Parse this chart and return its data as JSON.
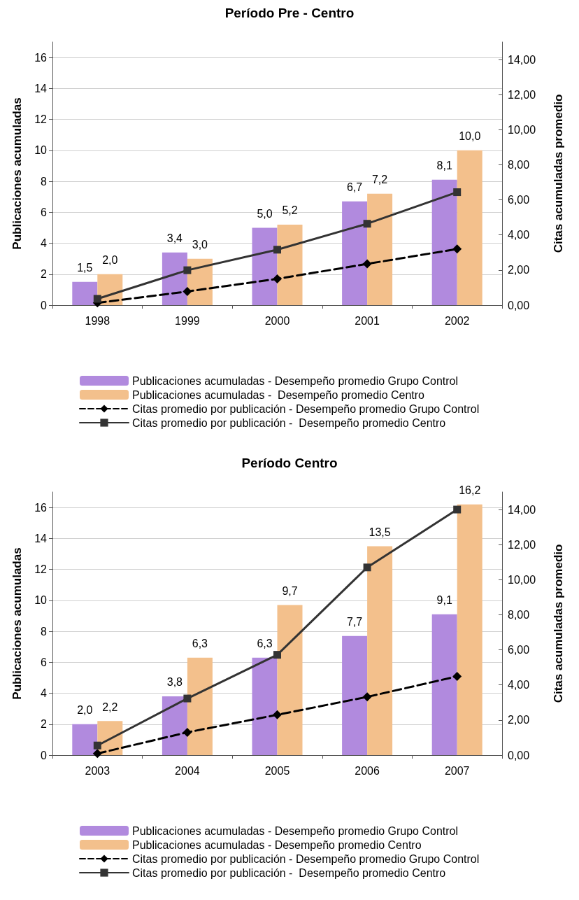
{
  "chart_data": [
    {
      "type": "bar",
      "title": "Período Pre - Centro",
      "ylabel": "Publicaciones acumuladas",
      "y2label": "Citas acumuladas promedio",
      "categories": [
        "1998",
        "1999",
        "2000",
        "2001",
        "2002"
      ],
      "series": [
        {
          "name": "Publicaciones acumuladas - Desempeño promedio Grupo Control",
          "color": "#b18ade",
          "values": [
            1.5,
            3.4,
            5.0,
            6.7,
            8.1
          ],
          "value_labels": [
            "1,5",
            "3,4",
            "5,0",
            "6,7",
            "8,1"
          ]
        },
        {
          "name": "Publicaciones acumuladas -  Desempeño promedio Centro",
          "color": "#f3c08c",
          "values": [
            2.0,
            3.0,
            5.2,
            7.2,
            10.0
          ],
          "value_labels": [
            "2,0",
            "3,0",
            "5,2",
            "7,2",
            "10,0"
          ]
        },
        {
          "name": "Citas promedio por publicación - Desempeño promedio Grupo Control",
          "type": "line",
          "axis": "y2",
          "color": "#000000",
          "marker": "diamond",
          "line_style": "dashed",
          "values": [
            0.13,
            0.78,
            1.5,
            2.35,
            3.2
          ]
        },
        {
          "name": "Citas promedio por publicación -  Desempeño promedio Centro",
          "type": "line",
          "axis": "y2",
          "color": "#333333",
          "marker": "square",
          "line_style": "solid",
          "values": [
            0.36,
            1.99,
            3.16,
            4.64,
            6.44
          ]
        }
      ],
      "ylim": [
        0,
        17
      ],
      "yticks": [
        0,
        2,
        4,
        6,
        8,
        10,
        12,
        14,
        16
      ],
      "y2lim": [
        0,
        15
      ],
      "y2ticks": [
        {
          "value": 0,
          "label": "0,00"
        },
        {
          "value": 2,
          "label": "2,00"
        },
        {
          "value": 4,
          "label": "4,00"
        },
        {
          "value": 6,
          "label": "6,00"
        },
        {
          "value": 8,
          "label": "8,00"
        },
        {
          "value": 10,
          "label": "10,00"
        },
        {
          "value": 12,
          "label": "12,00"
        },
        {
          "value": 14,
          "label": "14,00"
        }
      ],
      "grid": "y",
      "legend": "bottom"
    },
    {
      "type": "bar",
      "title": "Período Centro",
      "ylabel": "Publicaciones acumuladas",
      "y2label": "Citas acumuladas promedio",
      "categories": [
        "2003",
        "2004",
        "2005",
        "2006",
        "2007"
      ],
      "series": [
        {
          "name": "Publicaciones acumuladas - Desempeño promedio Grupo Control",
          "color": "#b18ade",
          "values": [
            2.0,
            3.8,
            6.3,
            7.7,
            9.1
          ],
          "value_labels": [
            "2,0",
            "3,8",
            "6,3",
            "7,7",
            "9,1"
          ]
        },
        {
          "name": "Publicaciones acumuladas - Desempeño promedio Centro",
          "color": "#f3c08c",
          "values": [
            2.2,
            6.3,
            9.7,
            13.5,
            16.2
          ],
          "value_labels": [
            "2,2",
            "6,3",
            "9,7",
            "13,5",
            "16,2"
          ]
        },
        {
          "name": "Citas promedio por publicación - Desempeño promedio Grupo Control",
          "type": "line",
          "axis": "y2",
          "color": "#000000",
          "marker": "diamond",
          "line_style": "dashed",
          "values": [
            0.09,
            1.3,
            2.3,
            3.32,
            4.49
          ]
        },
        {
          "name": "Citas promedio por publicación -  Desempeño promedio Centro",
          "type": "line",
          "axis": "y2",
          "color": "#333333",
          "marker": "square",
          "line_style": "solid",
          "values": [
            0.55,
            3.23,
            5.72,
            10.7,
            14.0
          ]
        }
      ],
      "ylim": [
        0,
        17
      ],
      "yticks": [
        0,
        2,
        4,
        6,
        8,
        10,
        12,
        14,
        16
      ],
      "y2lim": [
        0,
        15
      ],
      "y2ticks": [
        {
          "value": 0,
          "label": "0,00"
        },
        {
          "value": 2,
          "label": "2,00"
        },
        {
          "value": 4,
          "label": "4,00"
        },
        {
          "value": 6,
          "label": "6,00"
        },
        {
          "value": 8,
          "label": "8,00"
        },
        {
          "value": 10,
          "label": "10,00"
        },
        {
          "value": 12,
          "label": "12,00"
        },
        {
          "value": 14,
          "label": "14,00"
        }
      ],
      "grid": "y",
      "legend": "bottom"
    }
  ]
}
